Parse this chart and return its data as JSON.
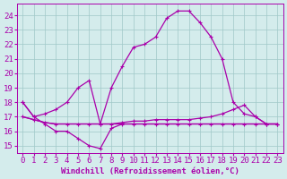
{
  "xlabel": "Windchill (Refroidissement éolien,°C)",
  "hours": [
    0,
    1,
    2,
    3,
    4,
    5,
    6,
    7,
    8,
    9,
    10,
    11,
    12,
    13,
    14,
    15,
    16,
    17,
    18,
    19,
    20,
    21,
    22,
    23
  ],
  "series": {
    "main": [
      18.0,
      17.0,
      17.2,
      17.5,
      18.0,
      19.0,
      19.5,
      16.5,
      19.0,
      20.5,
      21.8,
      22.0,
      22.5,
      23.8,
      24.3,
      24.3,
      23.5,
      22.5,
      21.0,
      18.0,
      17.2,
      17.0,
      16.5,
      16.5
    ],
    "flat_high": [
      17.0,
      16.8,
      16.6,
      16.5,
      16.5,
      16.5,
      16.5,
      16.5,
      16.5,
      16.6,
      16.7,
      16.7,
      16.8,
      16.8,
      16.8,
      16.8,
      16.9,
      17.0,
      17.2,
      17.5,
      17.8,
      17.0,
      16.5,
      16.5
    ],
    "flat_mid": [
      17.0,
      16.8,
      16.6,
      16.5,
      16.5,
      16.5,
      16.5,
      16.5,
      16.5,
      16.5,
      16.5,
      16.5,
      16.5,
      16.5,
      16.5,
      16.5,
      16.5,
      16.5,
      16.5,
      16.5,
      16.5,
      16.5,
      16.5,
      16.5
    ],
    "low_dip": [
      18.0,
      17.0,
      16.5,
      16.0,
      16.0,
      15.5,
      15.0,
      14.8,
      16.2,
      16.5,
      16.5,
      16.5,
      16.5,
      16.5,
      16.5,
      16.5,
      16.5,
      16.5,
      16.5,
      16.5,
      16.5,
      16.5,
      16.5,
      16.5
    ]
  },
  "color": "#aa00aa",
  "bg_color": "#d4ecec",
  "grid_color": "#a0c8c8",
  "ylim": [
    14.5,
    24.8
  ],
  "yticks": [
    15,
    16,
    17,
    18,
    19,
    20,
    21,
    22,
    23,
    24
  ],
  "xticks": [
    0,
    1,
    2,
    3,
    4,
    5,
    6,
    7,
    8,
    9,
    10,
    11,
    12,
    13,
    14,
    15,
    16,
    17,
    18,
    19,
    20,
    21,
    22,
    23
  ],
  "font_size": 6.5,
  "marker": "+"
}
